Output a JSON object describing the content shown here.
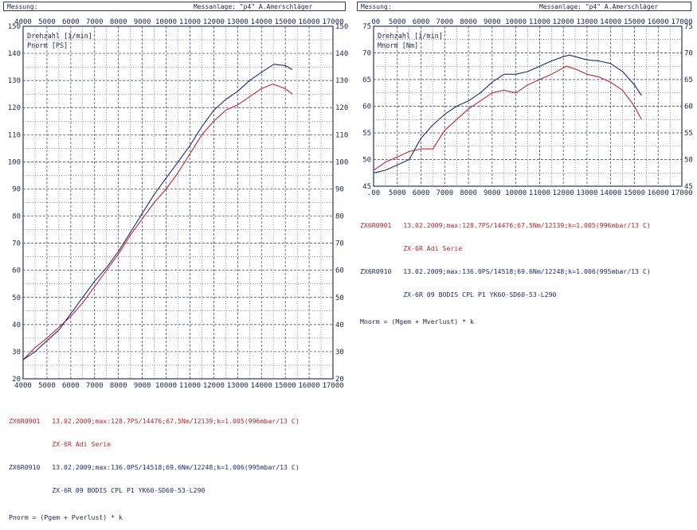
{
  "charts": [
    {
      "header": {
        "left": "Messung:",
        "right": "Messanlage: \"p4\" A.Amerschläger"
      },
      "legend_lines": [
        "Drehzahl [1/min]",
        "Pnorm [PS]"
      ],
      "notes": [
        {
          "text": "ZX6R0901   13.02.2009;max:128.7PS/14476;67.5Nm/12139;k=1.005(996mbar/13 C)",
          "color": "red"
        },
        {
          "text": "           ZX-6R Adi Serie",
          "color": "red"
        },
        {
          "text": "ZX6R0910   13.02.2009;max:136.0PS/14518;69.6Nm/12248;k=1.006(995mbar/13 C)",
          "color": "blue"
        },
        {
          "text": "           ZX-6R 09 BODIS CPL P1 YK60-SD60-53-L290",
          "color": "blue"
        },
        {
          "text": "Pnorm = (Pgem + Pverlust) * k",
          "color": "ink"
        }
      ]
    },
    {
      "header": {
        "left": "Messung:",
        "right": "Messanlage: \"p4\" A.Amerschläger"
      },
      "legend_lines": [
        "Drehzahl [1/min]",
        "Mnorm [Nm]"
      ],
      "notes": [
        {
          "text": "ZX6R0901   13.02.2009;max:128.7PS/14476;67.5Nm/12139;k=1.005(996mbar/13 C)",
          "color": "red"
        },
        {
          "text": "           ZX-6R Adi Serie",
          "color": "red"
        },
        {
          "text": "ZX6R0910   13.02.2009;max:136.0PS/14518;69.6Nm/12248;k=1.006(995mbar/13 C)",
          "color": "blue"
        },
        {
          "text": "           ZX-6R 09 BODIS CPL P1 YK60-SD60-53-L290",
          "color": "blue"
        },
        {
          "text": "Mnorm = (Mgem + Mverlust) * k",
          "color": "ink"
        }
      ]
    }
  ],
  "colors": {
    "red_run": "#c8202a",
    "blue_run": "#1c2878",
    "grid": "#2a3460",
    "axis_text": "#202850"
  },
  "chart_data": [
    {
      "type": "line",
      "x_tick_labels": [
        "4000",
        "5000",
        "6000",
        "7000",
        "8000",
        "9000",
        "10000",
        "11000",
        "12000",
        "13000",
        "14000",
        "15000",
        "16000",
        "17000"
      ],
      "y_tick_labels_left": [
        "20",
        "30",
        "40",
        "50",
        "60",
        "70",
        "80",
        "90",
        "100",
        "110",
        "120",
        "130",
        "140",
        "150"
      ],
      "y_tick_labels_right": [
        "20",
        "30",
        "40",
        "50",
        "60",
        "70",
        "80",
        "90",
        "100",
        "110",
        "120",
        "130",
        "140",
        "150"
      ],
      "xlim": [
        4000,
        17000
      ],
      "ylim": [
        20,
        150
      ],
      "grid": true,
      "series": [
        {
          "name": "ZX6R0901",
          "color_key": "red_run",
          "points": [
            [
              4000,
              27
            ],
            [
              4500,
              31.5
            ],
            [
              5000,
              35
            ],
            [
              5500,
              39
            ],
            [
              6000,
              43
            ],
            [
              6500,
              48
            ],
            [
              7000,
              54
            ],
            [
              7500,
              60
            ],
            [
              8000,
              66
            ],
            [
              8500,
              73
            ],
            [
              9000,
              79
            ],
            [
              9500,
              85
            ],
            [
              10000,
              90
            ],
            [
              10500,
              96
            ],
            [
              11000,
              103
            ],
            [
              11500,
              110
            ],
            [
              12000,
              115
            ],
            [
              12500,
              119
            ],
            [
              13000,
              121
            ],
            [
              13500,
              124
            ],
            [
              14000,
              127
            ],
            [
              14476,
              128.7
            ],
            [
              15000,
              127
            ],
            [
              15300,
              125
            ]
          ]
        },
        {
          "name": "ZX6R0910",
          "color_key": "blue_run",
          "points": [
            [
              4000,
              27
            ],
            [
              4500,
              30
            ],
            [
              5000,
              34
            ],
            [
              5500,
              38
            ],
            [
              6000,
              44
            ],
            [
              6500,
              50
            ],
            [
              7000,
              56
            ],
            [
              7500,
              61
            ],
            [
              8000,
              67
            ],
            [
              8500,
              74
            ],
            [
              9000,
              81
            ],
            [
              9500,
              88
            ],
            [
              10000,
              94
            ],
            [
              10500,
              100
            ],
            [
              11000,
              106
            ],
            [
              11500,
              113
            ],
            [
              12000,
              119
            ],
            [
              12500,
              123
            ],
            [
              13000,
              126
            ],
            [
              13500,
              130
            ],
            [
              14000,
              133
            ],
            [
              14518,
              136
            ],
            [
              15000,
              135.5
            ],
            [
              15300,
              134
            ]
          ]
        }
      ]
    },
    {
      "type": "line",
      "x_tick_labels": [
        ".00",
        "5000",
        "6000",
        "7000",
        "8000",
        "9000",
        "10000",
        "11000",
        "12000",
        "13000",
        "14000",
        "15000",
        "16000",
        "17000"
      ],
      "y_tick_labels_left": [
        "45",
        "50",
        "55",
        "60",
        "65",
        "70",
        "75"
      ],
      "y_tick_labels_right": [
        "45",
        "50",
        "55",
        "60",
        "65",
        "70",
        "75"
      ],
      "xlim": [
        4000,
        17000
      ],
      "ylim": [
        45,
        75
      ],
      "grid": true,
      "series": [
        {
          "name": "ZX6R0901",
          "color_key": "red_run",
          "points": [
            [
              4000,
              48
            ],
            [
              4500,
              49.5
            ],
            [
              5000,
              50.5
            ],
            [
              5500,
              51.5
            ],
            [
              6000,
              52
            ],
            [
              6500,
              52
            ],
            [
              7000,
              55.5
            ],
            [
              7500,
              57.5
            ],
            [
              8000,
              59.5
            ],
            [
              8500,
              61
            ],
            [
              9000,
              62.5
            ],
            [
              9500,
              63
            ],
            [
              10000,
              62.5
            ],
            [
              10500,
              64
            ],
            [
              11000,
              65
            ],
            [
              11500,
              66
            ],
            [
              12000,
              67.2
            ],
            [
              12139,
              67.5
            ],
            [
              12500,
              67
            ],
            [
              13000,
              66
            ],
            [
              13500,
              65.5
            ],
            [
              14000,
              64.5
            ],
            [
              14500,
              63
            ],
            [
              15000,
              60
            ],
            [
              15300,
              57.5
            ]
          ]
        },
        {
          "name": "ZX6R0910",
          "color_key": "blue_run",
          "points": [
            [
              4000,
              47.5
            ],
            [
              4500,
              48
            ],
            [
              5000,
              49
            ],
            [
              5500,
              50
            ],
            [
              6000,
              54
            ],
            [
              6500,
              56.5
            ],
            [
              7000,
              58.5
            ],
            [
              7500,
              60
            ],
            [
              8000,
              61
            ],
            [
              8500,
              62.5
            ],
            [
              9000,
              64.5
            ],
            [
              9500,
              66
            ],
            [
              10000,
              66
            ],
            [
              10500,
              66.5
            ],
            [
              11000,
              67.5
            ],
            [
              11500,
              68.5
            ],
            [
              12000,
              69.3
            ],
            [
              12248,
              69.6
            ],
            [
              12500,
              69.3
            ],
            [
              13000,
              68.7
            ],
            [
              13500,
              68.5
            ],
            [
              14000,
              68
            ],
            [
              14500,
              66.5
            ],
            [
              15000,
              64
            ],
            [
              15300,
              62
            ]
          ]
        }
      ]
    }
  ]
}
